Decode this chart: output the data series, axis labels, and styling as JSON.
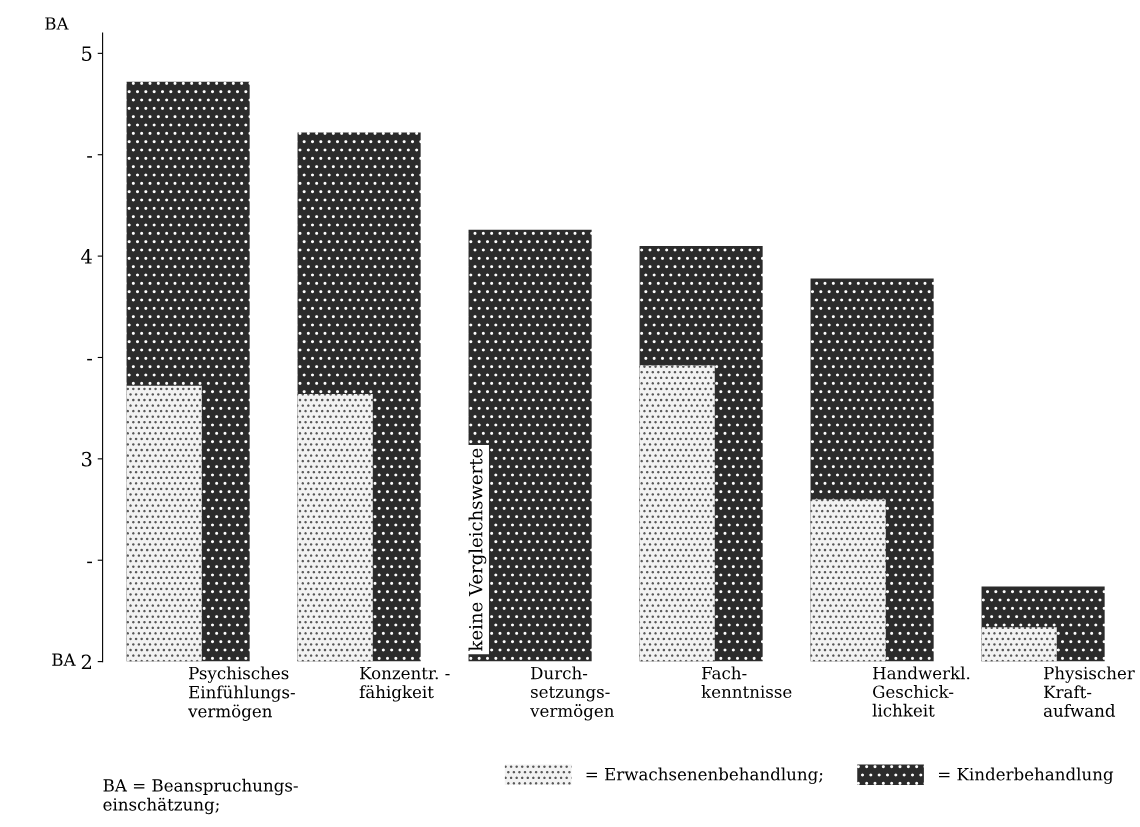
{
  "chart_data": {
    "type": "bar",
    "ylabel": "BA",
    "categories": [
      "Psychisches\nEinfühlungs-\nvermögen",
      "Konzentr. -\nfähigkeit",
      "Durch-\nsetzungs-\nvermögen",
      "Fach-\nkenntnisse",
      "Handwerkl.\nGeschick-\nlichkeit",
      "Physischer\nKraft-\naufwand"
    ],
    "series": [
      {
        "name": "= Kinderbehandlung",
        "color": "#2b2b2b",
        "values": [
          4.86,
          4.61,
          4.13,
          4.05,
          3.89,
          2.37
        ]
      },
      {
        "name": "= Erwachsenenbehandlung;",
        "color": "#f2f2f2",
        "values": [
          3.36,
          3.32,
          null,
          3.46,
          2.8,
          2.17
        ]
      }
    ],
    "ylim": [
      2,
      5.1
    ],
    "yticks": [
      2,
      {
        "value": 2.5,
        "label": "-"
      },
      3,
      {
        "value": 3.5,
        "label": "-"
      },
      4,
      {
        "value": 4.5,
        "label": "-"
      },
      5
    ],
    "grid": false,
    "legend": "bottom",
    "annotations": [
      "BA",
      "keine Vergleichswerte",
      "BA = Beanspruchungs-\neinschätzung;"
    ]
  }
}
